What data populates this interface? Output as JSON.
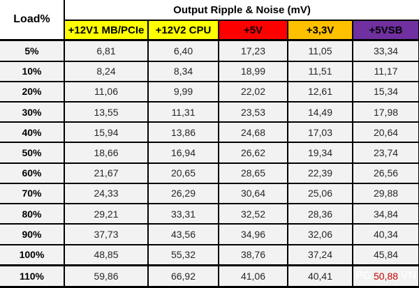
{
  "chart_data": {
    "type": "table",
    "title": "Output Ripple & Noise (mV)",
    "corner_label": "Load%",
    "columns": [
      "+12V1 MB/PCIe",
      "+12V2 CPU",
      "+5V",
      "+3,3V",
      "+5VSB"
    ],
    "column_colors": [
      "#FFFF00",
      "#FFFF00",
      "#FF0000",
      "#FFC000",
      "#7030A0"
    ],
    "rows": [
      {
        "load": "5%",
        "values": [
          "6,81",
          "6,40",
          "17,23",
          "11,05",
          "33,34"
        ]
      },
      {
        "load": "10%",
        "values": [
          "8,24",
          "8,34",
          "18,99",
          "11,51",
          "11,17"
        ]
      },
      {
        "load": "20%",
        "values": [
          "11,06",
          "9,99",
          "22,02",
          "12,61",
          "15,34"
        ]
      },
      {
        "load": "30%",
        "values": [
          "13,55",
          "11,31",
          "23,53",
          "14,49",
          "17,98"
        ]
      },
      {
        "load": "40%",
        "values": [
          "15,94",
          "13,86",
          "24,68",
          "17,03",
          "20,64"
        ]
      },
      {
        "load": "50%",
        "values": [
          "18,66",
          "16,94",
          "26,62",
          "19,34",
          "23,74"
        ]
      },
      {
        "load": "60%",
        "values": [
          "21,67",
          "20,65",
          "28,65",
          "22,39",
          "26,56"
        ]
      },
      {
        "load": "70%",
        "values": [
          "24,33",
          "26,29",
          "30,64",
          "25,06",
          "29,88"
        ]
      },
      {
        "load": "80%",
        "values": [
          "29,21",
          "33,31",
          "32,52",
          "28,36",
          "34,84"
        ]
      },
      {
        "load": "90%",
        "values": [
          "37,73",
          "43,56",
          "34,96",
          "32,06",
          "40,34"
        ]
      },
      {
        "load": "100%",
        "values": [
          "48,85",
          "55,32",
          "38,76",
          "37,24",
          "45,84"
        ]
      },
      {
        "load": "110%",
        "values": [
          "59,86",
          "66,92",
          "41,06",
          "40,41",
          "50,88"
        ]
      }
    ],
    "special_cell": {
      "row": 11,
      "col": 4,
      "color": "#C00000"
    }
  },
  "watermark": {
    "left_text": "PG",
    "right_text": "VN",
    "color": "#FFFFFF"
  },
  "colors": {
    "cell_background": "#F2F2F2",
    "header_background": "#FFFFFF",
    "border": "#000000",
    "value_text": "#262626",
    "out_of_spec_value": "#C00000"
  }
}
